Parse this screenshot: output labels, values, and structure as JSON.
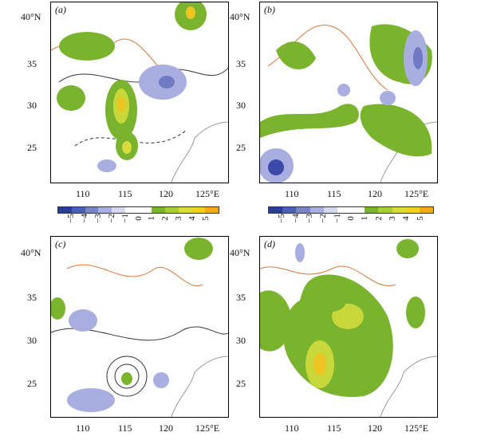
{
  "panels": [
    {
      "label": "(a)"
    },
    {
      "label": "(b)"
    },
    {
      "label": "(c)"
    },
    {
      "label": "(d)"
    }
  ],
  "axes": {
    "lat_ticks": [
      "40°N",
      "35",
      "30",
      "25"
    ],
    "lon_ticks": [
      "110",
      "115",
      "120",
      "125°E"
    ]
  },
  "colorbar": {
    "labels": [
      "−5",
      "−4",
      "−3",
      "−2",
      "−1",
      "0",
      "1",
      "2",
      "3",
      "4",
      "5"
    ],
    "colors": [
      "#2a3c9a",
      "#4b5fb8",
      "#7884c6",
      "#a8aee0",
      "#d6d8f0",
      "#ffffff",
      "#ffffff",
      "#7ab32e",
      "#a9cc3b",
      "#d8dc3c",
      "#f2d024",
      "#f5a81e"
    ]
  },
  "map_colors": {
    "positive": "#7ab32e",
    "positive_strong": "#c8d83a",
    "positive_core": "#f0c420",
    "negative": "#a8aee0",
    "negative_strong": "#6f7ac2",
    "negative_core": "#3b4aa8",
    "boundary": "#d9783a",
    "coast": "#9a9a9a"
  }
}
